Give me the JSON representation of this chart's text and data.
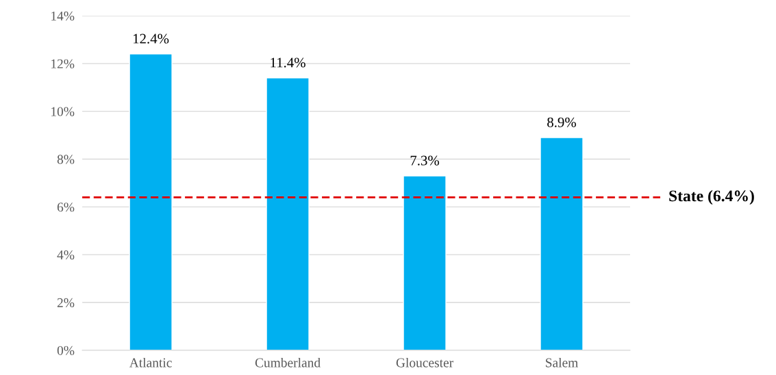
{
  "chart_data": {
    "type": "bar",
    "categories": [
      "Atlantic",
      "Cumberland",
      "Gloucester",
      "Salem"
    ],
    "values": [
      12.4,
      11.4,
      7.3,
      8.9
    ],
    "value_labels": [
      "12.4%",
      "11.4%",
      "7.3%",
      "8.9%"
    ],
    "color": "#00b0f0",
    "ylim": [
      0,
      14
    ],
    "yticks": [
      {
        "value": 0,
        "label": "0%"
      },
      {
        "value": 2,
        "label": "2%"
      },
      {
        "value": 4,
        "label": "4%"
      },
      {
        "value": 6,
        "label": "6%"
      },
      {
        "value": 8,
        "label": "8%"
      },
      {
        "value": 10,
        "label": "10%"
      },
      {
        "value": 12,
        "label": "12%"
      },
      {
        "value": 14,
        "label": "14%"
      }
    ],
    "grid": "y",
    "ref_lines": [
      {
        "axis": "y",
        "value": 6.4,
        "label": "State (6.4%)",
        "color": "#e00000",
        "line_style": "dashed"
      }
    ]
  }
}
